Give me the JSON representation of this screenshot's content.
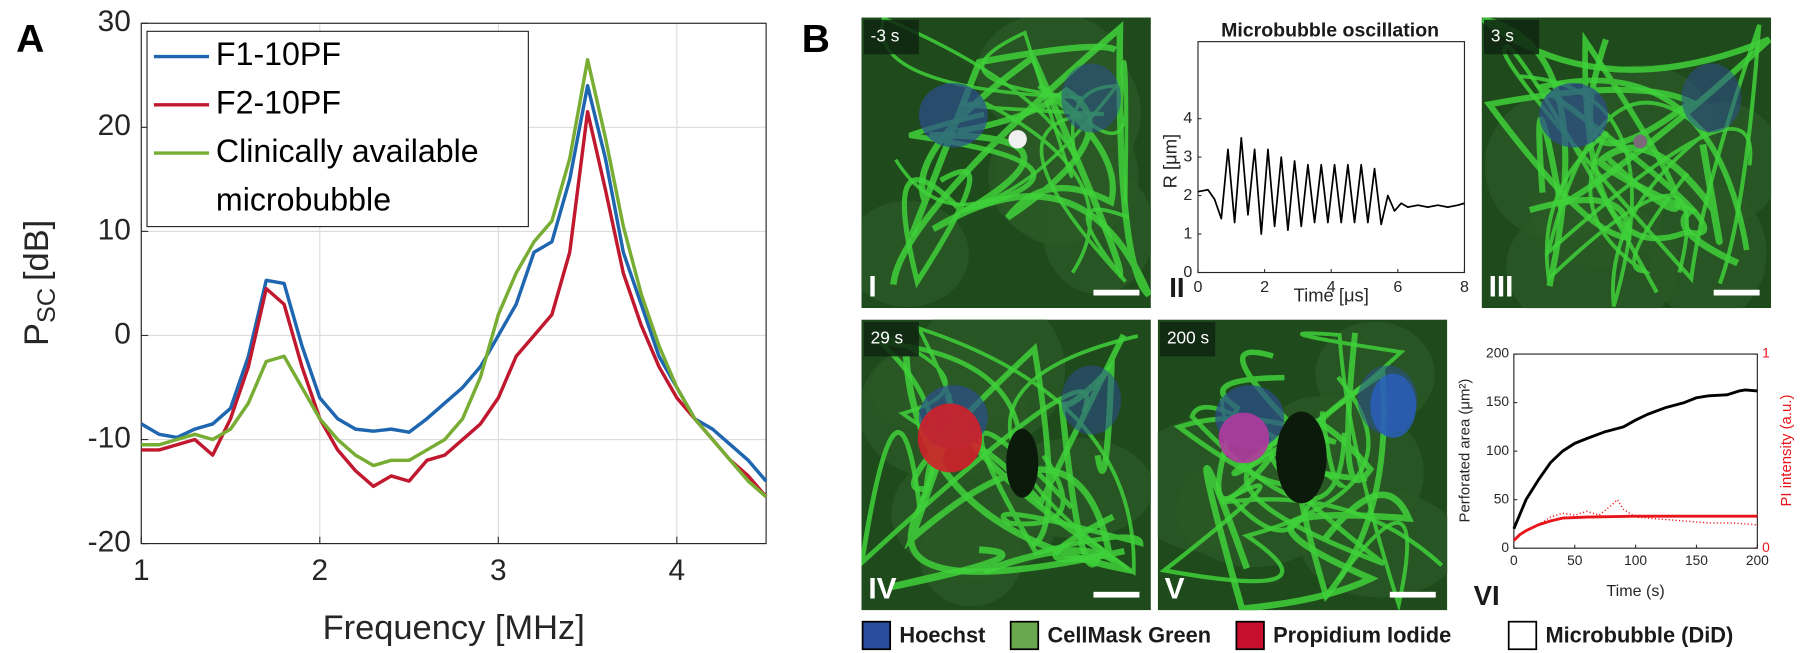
{
  "panel_labels": [
    "A",
    "B"
  ],
  "chart_data": [
    {
      "type": "line",
      "xlabel": "Frequency [MHz]",
      "ylabel": {
        "main": "P",
        "sub": "SC",
        "unit": "[dB]"
      },
      "x": [
        1.0,
        1.1,
        1.2,
        1.3,
        1.4,
        1.5,
        1.6,
        1.7,
        1.8,
        1.9,
        2.0,
        2.1,
        2.2,
        2.3,
        2.4,
        2.5,
        2.6,
        2.7,
        2.8,
        2.9,
        3.0,
        3.1,
        3.2,
        3.3,
        3.4,
        3.5,
        3.6,
        3.7,
        3.8,
        3.9,
        4.0,
        4.1,
        4.2,
        4.3,
        4.4,
        4.5
      ],
      "series": [
        {
          "name": "F1-10PF",
          "color": "#1f66b0",
          "values": [
            -8.5,
            -9.5,
            -9.8,
            -9,
            -8.5,
            -7,
            -2,
            5.3,
            5,
            -1,
            -6,
            -8,
            -9,
            -9.2,
            -9,
            -9.3,
            -8,
            -6.5,
            -5,
            -3,
            0,
            3,
            8,
            9,
            15,
            24,
            17,
            8,
            3,
            -2,
            -5,
            -8,
            -9,
            -10.5,
            -12,
            -14
          ]
        },
        {
          "name": "F2-10PF",
          "color": "#c0182e",
          "values": [
            -11,
            -11,
            -10.5,
            -10,
            -11.5,
            -8,
            -3,
            4.5,
            3,
            -3,
            -8,
            -11,
            -13,
            -14.5,
            -13.5,
            -14,
            -12,
            -11.5,
            -10,
            -8.5,
            -6,
            -2,
            0,
            2,
            8,
            21.5,
            14,
            6,
            1,
            -3,
            -6,
            -8,
            -10,
            -12,
            -13.5,
            -15.5
          ]
        },
        {
          "name": "Clinically available microbubble",
          "color": "#78ad34",
          "values": [
            -10.5,
            -10.5,
            -10,
            -9.5,
            -10,
            -9,
            -6.5,
            -2.5,
            -2,
            -5,
            -8,
            -10,
            -11.5,
            -12.5,
            -12,
            -12,
            -11,
            -10,
            -8,
            -4,
            2,
            6,
            9,
            11,
            17,
            26.5,
            19,
            10.5,
            4,
            -1,
            -5,
            -8,
            -10,
            -12,
            -14,
            -15.5
          ]
        }
      ],
      "xlim": [
        1,
        4.5
      ],
      "xticks": [
        1,
        2,
        3,
        4
      ],
      "ylim": [
        -20,
        30
      ],
      "yticks": [
        -20,
        -10,
        0,
        10,
        20,
        30
      ],
      "grid": true,
      "legend": "upper left"
    },
    {
      "type": "line",
      "title": "Microbubble oscillation",
      "panel_label": "II",
      "xlabel": "Time [μs]",
      "ylabel": "R [μm]",
      "series": [
        {
          "color": "#000000",
          "x": [
            0,
            0.3,
            0.5,
            0.7,
            0.9,
            1.1,
            1.3,
            1.5,
            1.7,
            1.9,
            2.1,
            2.3,
            2.5,
            2.7,
            2.9,
            3.1,
            3.3,
            3.5,
            3.7,
            3.9,
            4.1,
            4.3,
            4.5,
            4.7,
            4.9,
            5.1,
            5.3,
            5.5,
            5.7,
            5.9,
            6.1,
            6.3,
            6.6,
            6.9,
            7.2,
            7.5,
            7.8,
            8.0
          ],
          "values": [
            2.1,
            2.15,
            1.9,
            1.4,
            3.2,
            1.3,
            3.5,
            1.5,
            3.2,
            1.0,
            3.2,
            1.2,
            3.0,
            1.1,
            2.9,
            1.2,
            2.8,
            1.3,
            2.8,
            1.3,
            2.8,
            1.3,
            2.8,
            1.3,
            2.8,
            1.3,
            2.7,
            1.25,
            2.0,
            1.6,
            1.8,
            1.7,
            1.75,
            1.7,
            1.75,
            1.7,
            1.75,
            1.8
          ]
        }
      ],
      "xlim": [
        0,
        8
      ],
      "xticks": [
        0,
        2,
        4,
        6,
        8
      ],
      "ylim": [
        0,
        6
      ],
      "yticks": [
        0,
        1,
        2,
        3,
        4
      ],
      "grid": false
    },
    {
      "type": "line",
      "panel_label": "VI",
      "xlabel": "Time (s)",
      "ylabel": "Perforated area (μm²)",
      "y2label": "PI intensity (a.u.)",
      "y2color": "#e8151b",
      "series": [
        {
          "color": "#000000",
          "x": [
            0,
            5,
            10,
            20,
            30,
            40,
            50,
            60,
            75,
            90,
            100,
            110,
            125,
            140,
            150,
            160,
            175,
            185,
            190,
            200
          ],
          "values": [
            20,
            35,
            50,
            70,
            88,
            100,
            108,
            113,
            120,
            125,
            132,
            138,
            145,
            150,
            155,
            157,
            158,
            162,
            163,
            162
          ]
        },
        {
          "color": "#e8151b",
          "axis": "y2",
          "x": [
            0,
            5,
            10,
            20,
            30,
            40,
            60,
            100,
            150,
            200
          ],
          "values": [
            0.04,
            0.07,
            0.09,
            0.12,
            0.14,
            0.155,
            0.16,
            0.165,
            0.165,
            0.165
          ]
        },
        {
          "color": "#e8151b",
          "axis": "y2",
          "line_style": "dotted",
          "x": [
            20,
            30,
            40,
            50,
            60,
            70,
            80,
            85,
            90,
            100,
            120,
            140,
            160,
            180,
            200
          ],
          "values": [
            0.12,
            0.16,
            0.18,
            0.17,
            0.19,
            0.17,
            0.22,
            0.25,
            0.2,
            0.16,
            0.15,
            0.14,
            0.13,
            0.13,
            0.12
          ]
        }
      ],
      "xlim": [
        0,
        200
      ],
      "xticks": [
        0,
        50,
        100,
        150,
        200
      ],
      "ylim": [
        0,
        200
      ],
      "yticks": [
        0,
        50,
        100,
        150,
        200
      ],
      "y2lim": [
        0,
        1
      ],
      "y2ticks": [
        0,
        1
      ],
      "grid": false
    }
  ],
  "micrographs": [
    {
      "time": "-3 s",
      "label": "I"
    },
    {
      "time": "3 s",
      "label": "III"
    },
    {
      "time": "29 s",
      "label": "IV"
    },
    {
      "time": "200 s",
      "label": "V"
    }
  ],
  "stain_legend": [
    {
      "name": "Hoechst",
      "color": "#2a4c9c"
    },
    {
      "name": "CellMask Green",
      "color": "#6aa84f"
    },
    {
      "name": "Propidium Iodide",
      "color": "#c8102e"
    },
    {
      "name": "Microbubble (DiD)",
      "color": "#ffffff"
    }
  ]
}
